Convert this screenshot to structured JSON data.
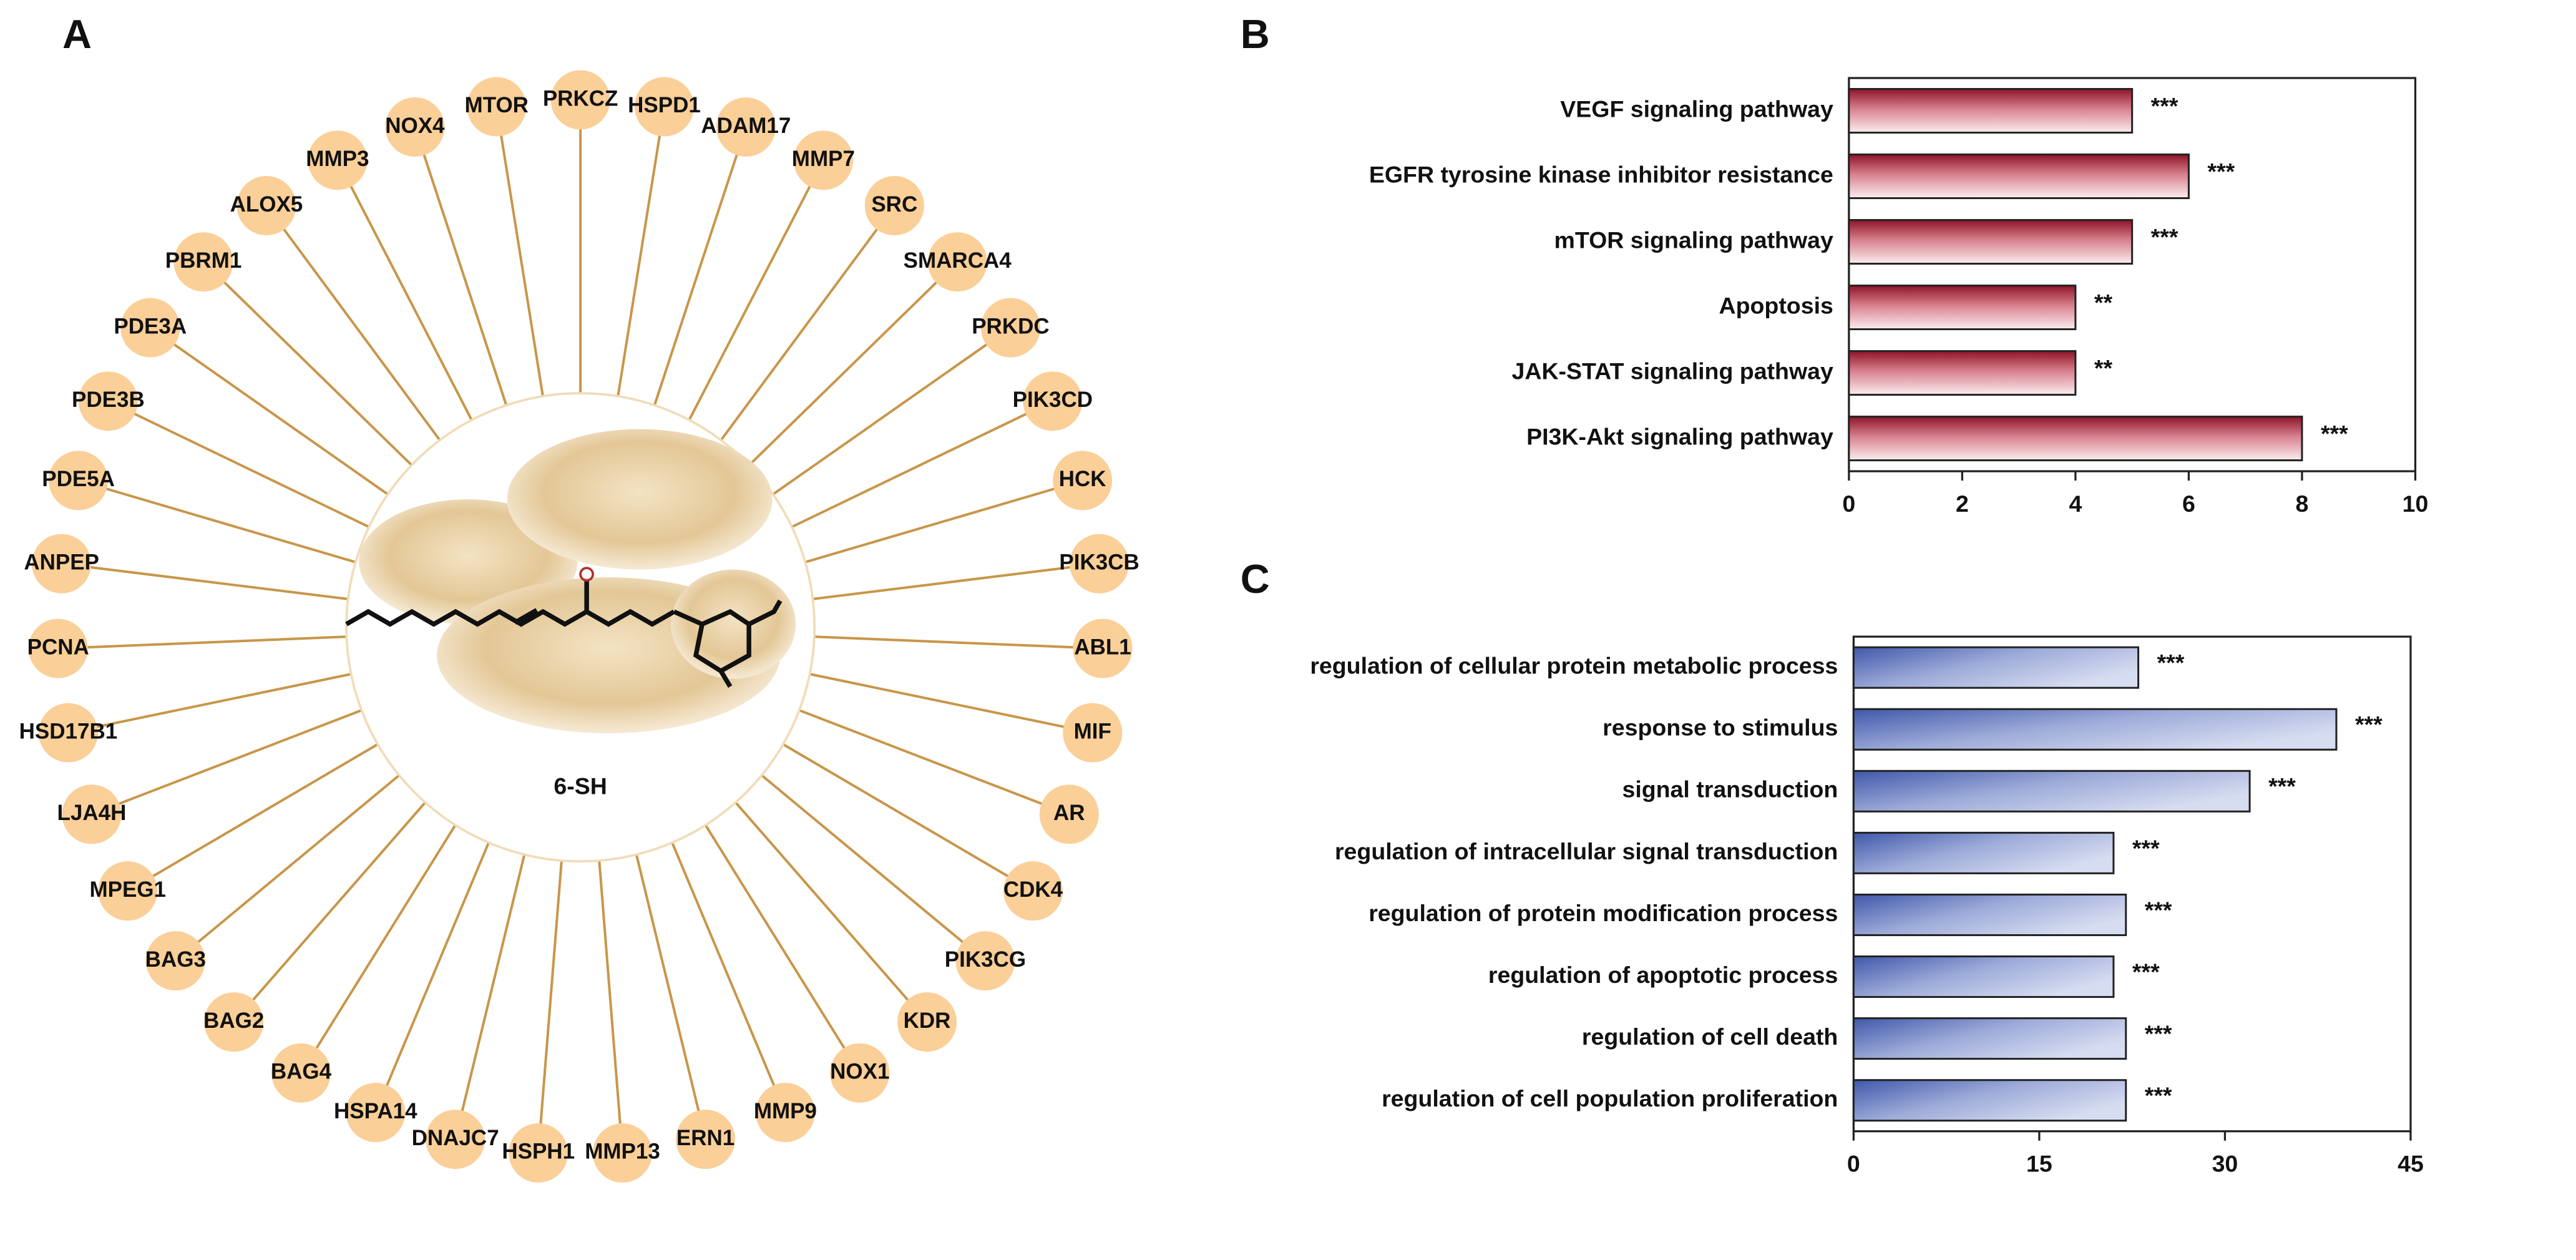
{
  "network": {
    "label": "A",
    "center": "6-SH",
    "nodes": [
      "PRKCZ",
      "HSPD1",
      "ADAM17",
      "MMP7",
      "SRC",
      "SMARCA4",
      "PRKDC",
      "PIK3CD",
      "HCK",
      "PIK3CB",
      "ABL1",
      "MIF",
      "AR",
      "CDK4",
      "PIK3CG",
      "KDR",
      "NOX1",
      "MMP9",
      "ERN1",
      "MMP13",
      "HSPH1",
      "DNAJC7",
      "HSPA14",
      "BAG4",
      "BAG2",
      "BAG3",
      "MPEG1",
      "LJA4H",
      "HSD17B1",
      "PCNA",
      "ANPEP",
      "PDE5A",
      "PDE3B",
      "PDE3A",
      "PBRM1",
      "ALOX5",
      "MMP3",
      "NOX4",
      "MTOR"
    ]
  },
  "chart_data": [
    {
      "type": "bar",
      "orientation": "horizontal",
      "label": "B",
      "categories": [
        "VEGF signaling pathway",
        "EGFR tyrosine kinase inhibitor resistance",
        "mTOR signaling pathway",
        "Apoptosis",
        "JAK-STAT signaling pathway",
        "PI3K-Akt signaling pathway"
      ],
      "values": [
        5,
        6,
        5,
        4,
        4,
        8
      ],
      "annotations": [
        "***",
        "***",
        "***",
        "**",
        "**",
        "***"
      ],
      "color": "#a4243b",
      "xlim": [
        0,
        10
      ],
      "xticks": [
        0,
        2,
        4,
        6,
        8,
        10
      ]
    },
    {
      "type": "bar",
      "orientation": "horizontal",
      "label": "C",
      "categories": [
        "regulation of cellular protein metabolic process",
        "response to stimulus",
        "signal transduction",
        "regulation of intracellular signal transduction",
        "regulation of protein modification process",
        "regulation of apoptotic process",
        "regulation of cell death",
        "regulation of cell population proliferation"
      ],
      "values": [
        23,
        39,
        32,
        21,
        22,
        21,
        22,
        22
      ],
      "annotations": [
        "***",
        "***",
        "***",
        "***",
        "***",
        "***",
        "***",
        "***"
      ],
      "color": "#4a63b0",
      "xlim": [
        0,
        45
      ],
      "xticks": [
        0,
        15,
        30,
        45
      ]
    }
  ]
}
